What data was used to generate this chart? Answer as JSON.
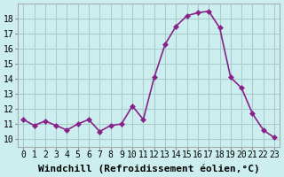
{
  "x": [
    0,
    1,
    2,
    3,
    4,
    5,
    6,
    7,
    8,
    9,
    10,
    11,
    12,
    13,
    14,
    15,
    16,
    17,
    18,
    19,
    20,
    21,
    22,
    23
  ],
  "y": [
    11.3,
    10.9,
    11.2,
    10.9,
    10.6,
    11.0,
    11.3,
    10.5,
    10.9,
    11.0,
    12.2,
    11.3,
    14.1,
    16.3,
    17.5,
    18.2,
    18.4,
    18.5,
    17.4,
    14.1,
    13.4,
    11.7,
    10.6,
    10.1
  ],
  "line_color": "#882288",
  "marker": "D",
  "marker_size": 3,
  "bg_color": "#cceeee",
  "grid_color": "#aacccc",
  "xlabel": "Windchill (Refroidissement éolien,°C)",
  "xlabel_fontsize": 8,
  "xtick_labels": [
    "0",
    "1",
    "2",
    "3",
    "4",
    "5",
    "6",
    "7",
    "8",
    "9",
    "10",
    "11",
    "12",
    "13",
    "14",
    "15",
    "16",
    "17",
    "18",
    "19",
    "20",
    "21",
    "22",
    "23"
  ],
  "ytick_values": [
    10,
    11,
    12,
    13,
    14,
    15,
    16,
    17,
    18
  ],
  "ylim": [
    9.5,
    19.0
  ],
  "xlim": [
    -0.5,
    23.5
  ],
  "tick_fontsize": 7,
  "line_width": 1.2
}
